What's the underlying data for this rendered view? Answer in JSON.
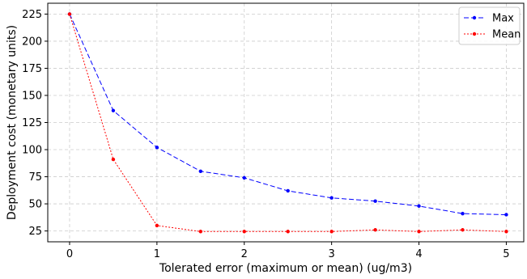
{
  "chart_data": {
    "type": "line",
    "xlabel": "Tolerated error (maximum or mean) (ug/m3)",
    "ylabel": "Deployment cost (monetary units)",
    "xlim": [
      -0.25,
      5.2
    ],
    "ylim": [
      15,
      235
    ],
    "xticks": [
      "0",
      "1",
      "2",
      "3",
      "4",
      "5"
    ],
    "yticks": [
      "25",
      "50",
      "75",
      "100",
      "125",
      "150",
      "175",
      "200",
      "225"
    ],
    "grid": true,
    "legend_position": "top-right",
    "x": [
      0,
      0.5,
      1,
      1.5,
      2,
      2.5,
      3,
      3.5,
      4,
      4.5,
      5
    ],
    "series": [
      {
        "name": "Max",
        "color": "#0000ff",
        "line_style": "dashed",
        "marker": "dot",
        "values": [
          225,
          136,
          102,
          80,
          74,
          62,
          55.5,
          52.5,
          48,
          41,
          40
        ]
      },
      {
        "name": "Mean",
        "color": "#ff0000",
        "line_style": "dotted",
        "marker": "dot",
        "values": [
          225,
          91,
          30,
          24.5,
          24.5,
          24.5,
          24.5,
          26,
          24.5,
          26,
          24.5
        ]
      }
    ]
  }
}
